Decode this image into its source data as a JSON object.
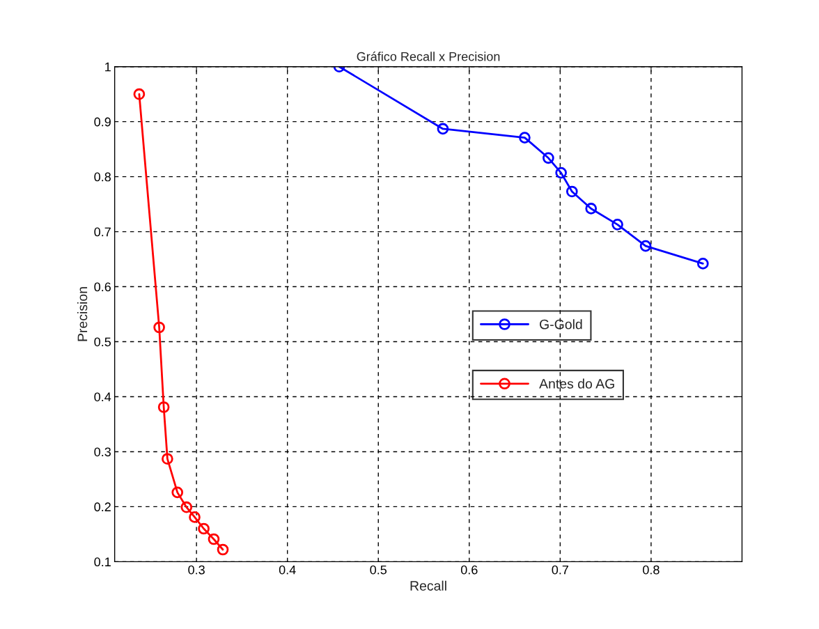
{
  "chart_data": {
    "type": "line",
    "title": "Gráfico Recall x Precision",
    "xlabel": "Recall",
    "ylabel": "Precision",
    "xlim": [
      0.21,
      0.9
    ],
    "xticks": [
      0.3,
      0.4,
      0.5,
      0.6,
      0.7,
      0.8
    ],
    "ylim": [
      0.1,
      1
    ],
    "yticks": [
      0.1,
      0.2,
      0.3,
      0.4,
      0.5,
      0.6,
      0.7,
      0.8,
      0.9,
      1
    ],
    "grid": true,
    "legend": "right",
    "marker": "circle",
    "line_style": "solid",
    "series": [
      {
        "name": "G-Gold",
        "color": "#0000ff",
        "x": [
          0.457,
          0.571,
          0.661,
          0.687,
          0.701,
          0.713,
          0.734,
          0.763,
          0.794,
          0.857
        ],
        "values": [
          1.0,
          0.887,
          0.871,
          0.834,
          0.807,
          0.773,
          0.742,
          0.713,
          0.674,
          0.642
        ]
      },
      {
        "name": "Antes do AG",
        "color": "#ff0000",
        "x": [
          0.237,
          0.259,
          0.264,
          0.268,
          0.279,
          0.289,
          0.298,
          0.308,
          0.319,
          0.329
        ],
        "values": [
          0.95,
          0.526,
          0.381,
          0.287,
          0.226,
          0.199,
          0.181,
          0.16,
          0.141,
          0.122
        ]
      }
    ]
  }
}
